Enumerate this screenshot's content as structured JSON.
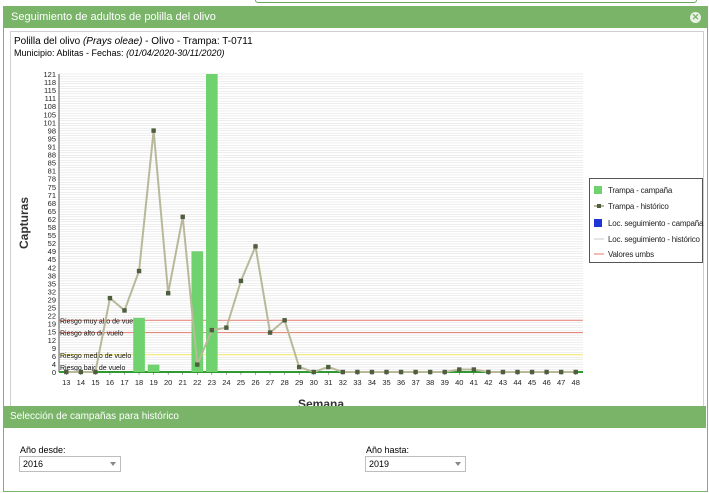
{
  "window": {
    "title": "Seguimiento de adultos de polilla del olivo",
    "close_icon": "close-icon"
  },
  "header": {
    "line1_a": "Polilla del olivo ",
    "line1_species": "(Prays oleae)",
    "line1_b": " - Olivo - Trampa: T-0711",
    "line2_a": "Municipio: Ablitas - Fechas: ",
    "line2_dates": "(01/04/2020-30/11/2020)"
  },
  "colors": {
    "accent": "#79b469",
    "bar": "#6fd26f",
    "line": "#b9b99a",
    "marker": "#4f5e3f",
    "risk": "#e07a6a",
    "loc_campaign": "#1f35d6"
  },
  "chart_data": {
    "type": "bar+line",
    "xlabel": "Semana",
    "ylabel": "Capturas",
    "weeks": [
      "13",
      "14",
      "15",
      "16",
      "17",
      "18",
      "19",
      "20",
      "21",
      "22",
      "23",
      "24",
      "25",
      "26",
      "27",
      "28",
      "29",
      "30",
      "31",
      "32",
      "33",
      "34",
      "35",
      "36",
      "37",
      "38",
      "39",
      "40",
      "41",
      "42",
      "43",
      "44",
      "45",
      "46",
      "47",
      "48"
    ],
    "y_ticks": [
      "121",
      "118",
      "115",
      "111",
      "108",
      "105",
      "101",
      "98",
      "95",
      "91",
      "88",
      "85",
      "81",
      "78",
      "75",
      "71",
      "68",
      "65",
      "62",
      "58",
      "55",
      "52",
      "49",
      "45",
      "42",
      "38",
      "35",
      "32",
      "29",
      "25",
      "22",
      "19",
      "15",
      "12",
      "9",
      "6",
      "4",
      "0"
    ],
    "ylim": [
      0,
      121
    ],
    "grid": true,
    "legend_position": "right",
    "series": [
      {
        "name": "Trampa - campaña",
        "kind": "bar",
        "values": [
          0,
          0,
          0,
          0,
          0,
          22,
          3,
          0,
          0,
          49,
          121,
          0,
          0,
          0,
          0,
          0,
          0,
          0,
          0,
          0,
          0,
          0,
          0,
          0,
          0,
          0,
          0,
          0,
          0,
          0,
          0,
          0,
          0,
          0,
          0,
          0
        ]
      },
      {
        "name": "Trampa - histórico",
        "kind": "line",
        "values": [
          0,
          0,
          0,
          30,
          25,
          41,
          98,
          32,
          63,
          3,
          17,
          18,
          37,
          51,
          16,
          21,
          2,
          0,
          2,
          0,
          0,
          0,
          0,
          0,
          0,
          0,
          0,
          1,
          1,
          0,
          0,
          0,
          0,
          0,
          0,
          0
        ]
      }
    ],
    "thresholds": [
      {
        "label": "Riesgo muy alto de vuelo",
        "value": 21
      },
      {
        "label": "Riesgo alto de vuelo",
        "value": 16
      },
      {
        "label": "Riesgo medio de vuelo",
        "value": 7
      },
      {
        "label": "Riesgo bajo de vuelo",
        "value": 0
      }
    ],
    "legend": [
      "Trampa - campaña",
      "Trampa - histórico",
      "Loc. seguimiento - campaña",
      "Loc. seguimiento - histórico",
      "Valores umbs"
    ]
  },
  "history": {
    "title": "Selección de campañas para histórico",
    "from_label": "Año desde:",
    "from_value": "2016",
    "to_label": "Año hasta:",
    "to_value": "2019"
  }
}
